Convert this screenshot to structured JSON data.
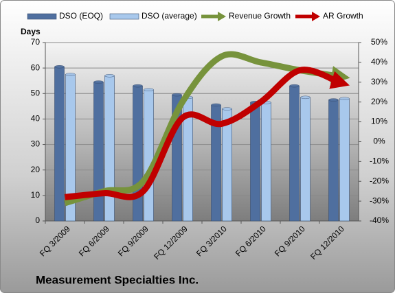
{
  "chart_data": {
    "type": "bar",
    "title": "Measurement Specialties Inc.",
    "ylabel": "Days",
    "categories": [
      "FQ 3/2009",
      "FQ 6/2009",
      "FQ 9/2009",
      "FQ 12/2009",
      "FQ 3/2010",
      "FQ 6/2010",
      "FQ 9/2010",
      "FQ 12/2010"
    ],
    "series": [
      {
        "name": "DSO (EOQ)",
        "color": "#4f6f9f",
        "values": [
          60.5,
          54.5,
          53,
          49.5,
          45.5,
          46.5,
          53,
          47.5
        ]
      },
      {
        "name": "DSO (average)",
        "color": "#a8c8ec",
        "values": [
          57.5,
          57,
          51.5,
          48.5,
          44,
          46.5,
          48.5,
          48
        ]
      },
      {
        "name": "Revenue Growth",
        "color": "#77933c",
        "type": "line",
        "axis": "y2",
        "values": [
          -31,
          -25,
          -20,
          20,
          43,
          40,
          36,
          33
        ]
      },
      {
        "name": "AR Growth",
        "color": "#c00000",
        "type": "line",
        "axis": "y2",
        "values": [
          -28,
          -26,
          -25,
          12,
          9,
          20,
          36,
          30
        ]
      }
    ],
    "ylim": [
      0,
      70
    ],
    "yticks": [
      0,
      10,
      20,
      30,
      40,
      50,
      60,
      70
    ],
    "y2lim": [
      -40,
      50
    ],
    "y2ticks": [
      {
        "value": -40,
        "label": "-40%"
      },
      {
        "value": -30,
        "label": "-30%"
      },
      {
        "value": -20,
        "label": "-20%"
      },
      {
        "value": -10,
        "label": "-10%"
      },
      {
        "value": 0,
        "label": "0%"
      },
      {
        "value": 10,
        "label": "10%"
      },
      {
        "value": 20,
        "label": "20%"
      },
      {
        "value": 30,
        "label": "30%"
      },
      {
        "value": 40,
        "label": "40%"
      },
      {
        "value": 50,
        "label": "50%"
      }
    ],
    "grid": true,
    "legend": "top"
  }
}
